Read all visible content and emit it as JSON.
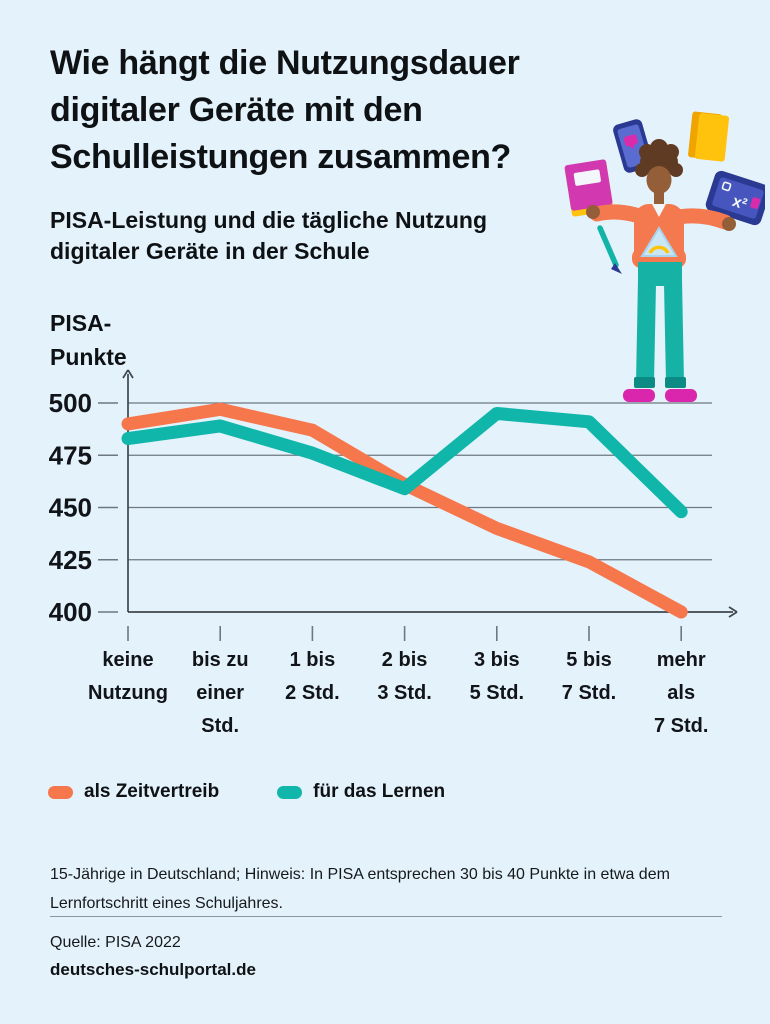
{
  "header": {
    "title": "Wie hängt die Nutzungsdauer\ndigitaler Geräte mit den\nSchulleistungen zusammen?",
    "subtitle": "PISA-Leistung und die tägliche Nutzung\ndigitaler Geräte in der Schule"
  },
  "chart_data": {
    "type": "line",
    "title": "PISA-Leistung und die tägliche Nutzung digitaler Geräte in der Schule",
    "xlabel": "",
    "ylabel": "PISA-Punkte",
    "ylabel_display": "PISA-\nPunkte",
    "categories": [
      [
        "keine",
        "Nutzung"
      ],
      [
        "bis zu",
        "einer",
        "Std."
      ],
      [
        "1 bis",
        "2 Std."
      ],
      [
        "2 bis",
        "3 Std."
      ],
      [
        "3 bis",
        "5 Std."
      ],
      [
        "5 bis",
        "7 Std."
      ],
      [
        "mehr",
        "als",
        "7 Std."
      ]
    ],
    "yticks": [
      400,
      425,
      450,
      475,
      500
    ],
    "ylim": [
      400,
      510
    ],
    "grid": true,
    "legend_position": "bottom",
    "series": [
      {
        "name": "als Zeitvertreib",
        "color": "#F5774B",
        "values": [
          490,
          497,
          487,
          461,
          440,
          424,
          400
        ]
      },
      {
        "name": "für das Lernen",
        "color": "#0FB6A9",
        "values": [
          483,
          489,
          476,
          459,
          495,
          491,
          448
        ]
      }
    ]
  },
  "footer": {
    "note": "15-Jährige in Deutschland; Hinweis: In PISA entsprechen 30 bis 40 Punkte in etwa dem\nLernfortschritt eines Schuljahres.",
    "source": "Quelle: PISA 2022",
    "brand": "deutsches-schulportal.de"
  },
  "illustration": {
    "name": "student-juggling-school-items"
  }
}
